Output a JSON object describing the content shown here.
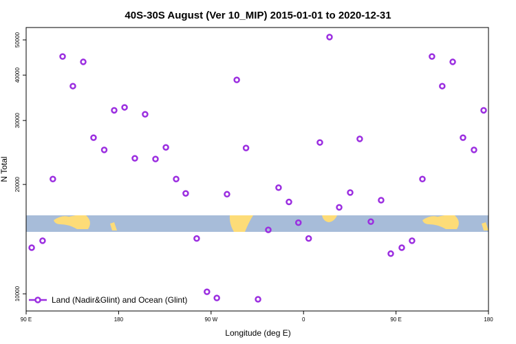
{
  "chart_data": {
    "type": "scatter",
    "title": "40S-30S August (Ver 10_MIP)   2015-01-01 to 2020-12-31",
    "x_label": "Longitude (deg E)",
    "y_label": "N Total",
    "log_scale_y": true,
    "xlim": [
      90,
      540
    ],
    "ylim": [
      8970,
      54080
    ],
    "xticks": [
      {
        "value": 90,
        "label": "90 E"
      },
      {
        "value": 180,
        "label": "180"
      },
      {
        "value": 270,
        "label": "90 W"
      },
      {
        "value": 360,
        "label": "0"
      },
      {
        "value": 450,
        "label": "90 E"
      },
      {
        "value": 540,
        "label": "180"
      }
    ],
    "yticks": [
      10000,
      20000,
      30000,
      40000,
      50000
    ],
    "legend_position": "bottom-left",
    "series": [
      {
        "name": "Land (Nadir&Glint) and Ocean (Glint)",
        "color": "#9b2ee0",
        "x": [
          95.4,
          106,
          116,
          125.5,
          135.5,
          145.6,
          155.6,
          166,
          175.7,
          185.8,
          195.8,
          205.8,
          215.9,
          226,
          236,
          245.3,
          256,
          266,
          275.6,
          285.5,
          295,
          304,
          315.7,
          325.7,
          335.7,
          345.8,
          355,
          365,
          375.9,
          385.3,
          394.7,
          405.4,
          414.7,
          425.5,
          435.5,
          444.9,
          455.6,
          465.6,
          475.7,
          485,
          495,
          505.2,
          515.2,
          525.9,
          535.3
        ],
        "values": [
          13400,
          14000,
          20700,
          45000,
          37300,
          43500,
          26900,
          24900,
          32000,
          32600,
          23600,
          31200,
          23500,
          25300,
          20700,
          18900,
          14200,
          10130,
          9740,
          18800,
          38800,
          25200,
          9660,
          15000,
          19600,
          17900,
          15700,
          14200,
          26100,
          50900,
          17300,
          19000,
          26700,
          15800,
          18100,
          12900,
          13400,
          14000,
          20700,
          45000,
          37300,
          43500,
          26900,
          24900,
          32000
        ]
      }
    ]
  }
}
